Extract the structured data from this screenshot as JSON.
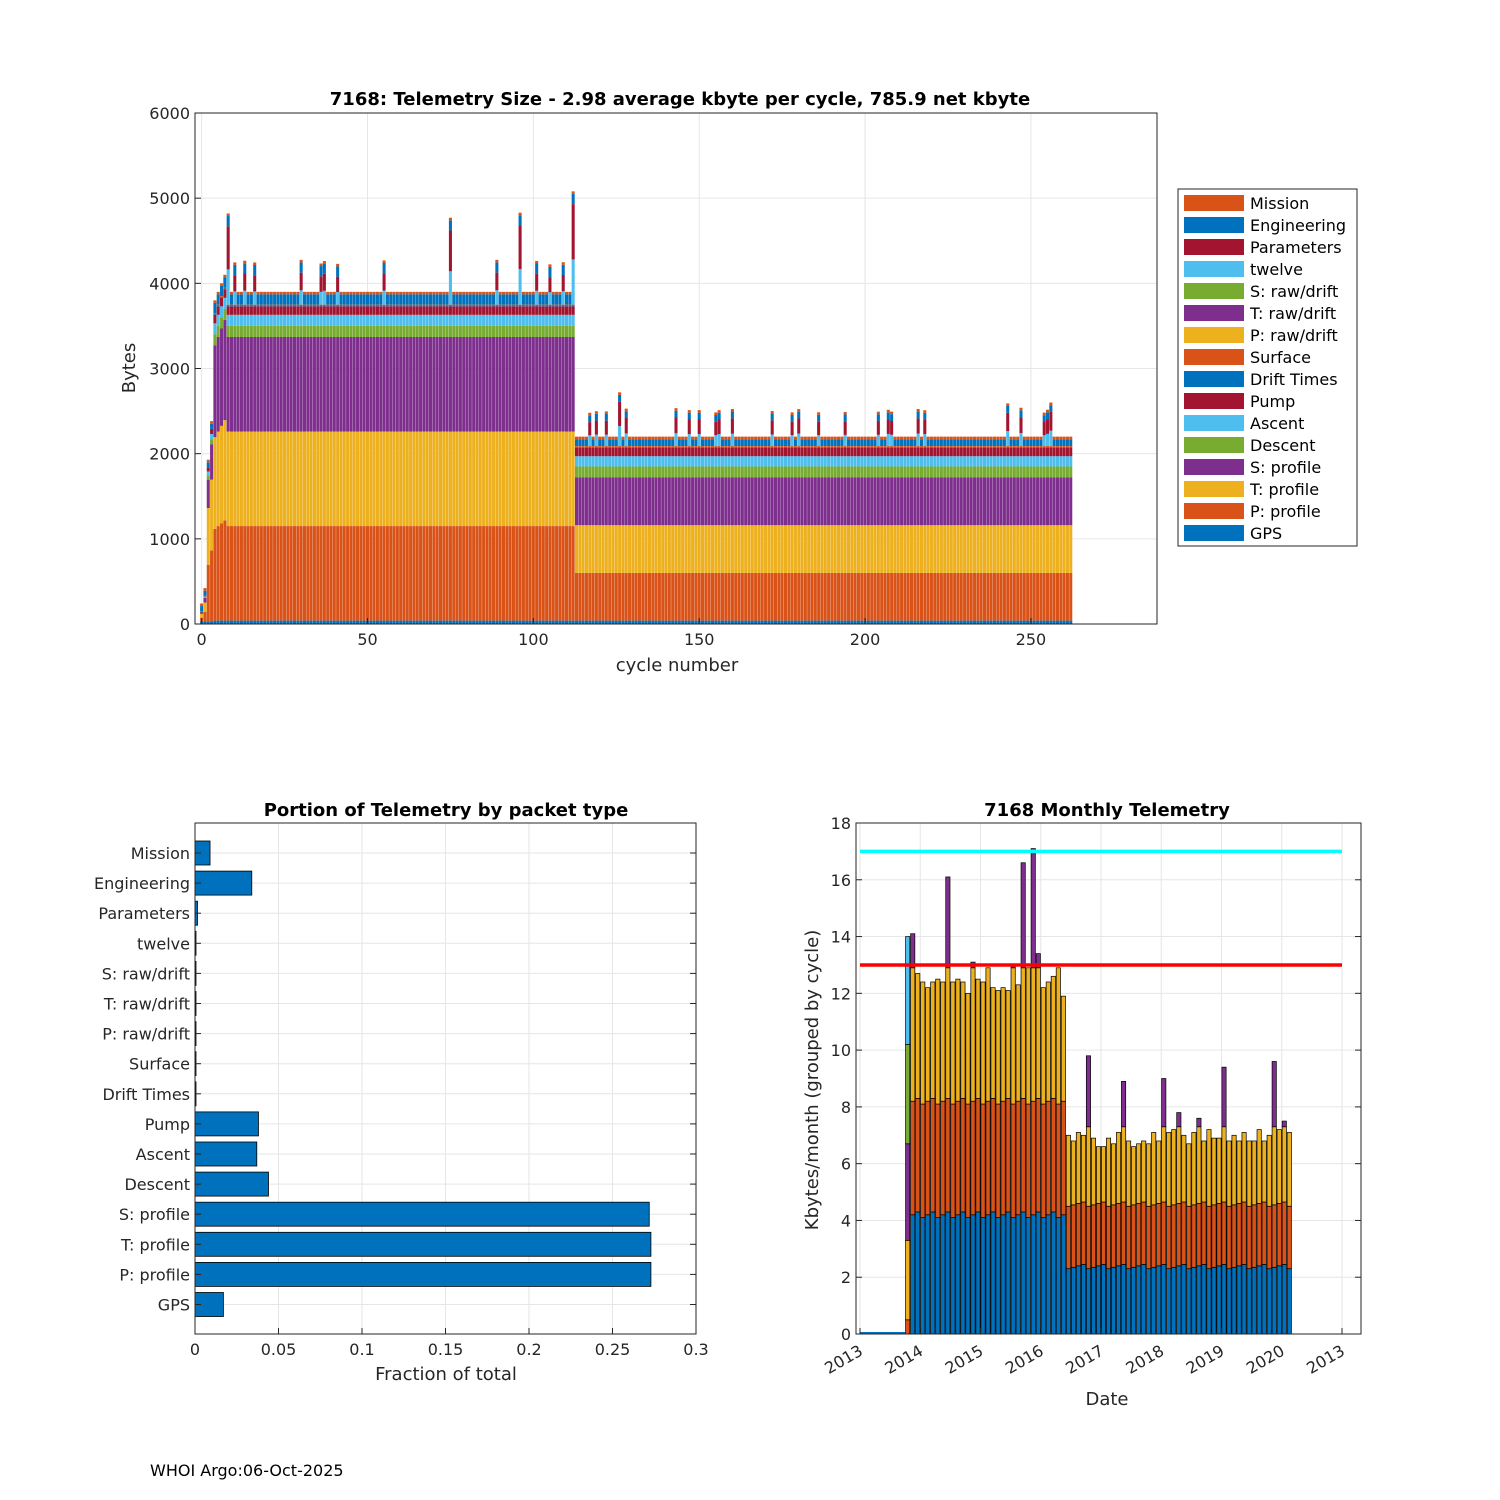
{
  "footer": "WHOI Argo:06-Oct-2025",
  "chart_data": [
    {
      "type": "bar",
      "stacked": true,
      "title": "7168: Telemetry Size - 2.98 average kbyte per cycle,  785.9 net kbyte",
      "xlabel": "cycle number",
      "ylabel": "Bytes",
      "xlim": [
        -2,
        288
      ],
      "ylim": [
        0,
        6000
      ],
      "xticks": [
        0,
        50,
        100,
        150,
        200,
        250
      ],
      "yticks": [
        0,
        1000,
        2000,
        3000,
        4000,
        5000,
        6000
      ],
      "grid": true,
      "legend_position": "right",
      "legend": [
        "Mission",
        "Engineering",
        "Parameters",
        "twelve",
        "S: raw/drift",
        "T: raw/drift",
        "P: raw/drift",
        "Surface",
        "Drift Times",
        "Pump",
        "Ascent",
        "Descent",
        "S: profile",
        "T: profile",
        "P: profile",
        "GPS"
      ],
      "colors": [
        "#D95319",
        "#0072BD",
        "#A2142F",
        "#4DBEEE",
        "#77AC30",
        "#7E2F8E",
        "#EDB120",
        "#D95319",
        "#0072BD",
        "#A2142F",
        "#4DBEEE",
        "#77AC30",
        "#7E2F8E",
        "#EDB120",
        "#D95319",
        "#0072BD"
      ],
      "cycles": "0-262",
      "typical_stack_cycles_8_112": {
        "GPS": 40,
        "P: profile": 1110,
        "T: profile": 1110,
        "S: profile": 1110,
        "Descent": 130,
        "Ascent": 130,
        "Pump": 100,
        "Drift Times": 10,
        "Surface": 10,
        "Engineering": 120,
        "Mission": 30
      },
      "typical_stack_cycles_113_262": {
        "GPS": 40,
        "P: profile": 560,
        "T: profile": 560,
        "S: profile": 560,
        "Descent": 130,
        "Ascent": 120,
        "Pump": 100,
        "Drift Times": 10,
        "Surface": 10,
        "Engineering": 80,
        "Mission": 30
      },
      "peaks": [
        {
          "cycle": 8,
          "total": 4820
        },
        {
          "cycle": 75,
          "total": 4770
        },
        {
          "cycle": 96,
          "total": 4830
        },
        {
          "cycle": 112,
          "total": 5080
        },
        {
          "cycle": 126,
          "total": 2720
        },
        {
          "cycle": 243,
          "total": 2590
        },
        {
          "cycle": 256,
          "total": 2600
        }
      ]
    },
    {
      "type": "bar",
      "orientation": "horizontal",
      "title": "Portion of Telemetry by packet type",
      "xlabel": "Fraction of total",
      "xlim": [
        0,
        0.3
      ],
      "xticks": [
        0,
        0.05,
        0.1,
        0.15,
        0.2,
        0.25,
        0.3
      ],
      "xticklabels": [
        "0",
        "0.05",
        "0.1",
        "0.15",
        "0.2",
        "0.25",
        "0.3"
      ],
      "categories": [
        "Mission",
        "Engineering",
        "Parameters",
        "twelve",
        "S: raw/drift",
        "T: raw/drift",
        "P: raw/drift",
        "Surface",
        "Drift Times",
        "Pump",
        "Ascent",
        "Descent",
        "S: profile",
        "T: profile",
        "P: profile",
        "GPS"
      ],
      "values": [
        0.009,
        0.034,
        0.0015,
        0.0005,
        0.0005,
        0.0005,
        0.0005,
        0.0005,
        0.0005,
        0.038,
        0.037,
        0.044,
        0.272,
        0.273,
        0.273,
        0.017
      ],
      "grid": true,
      "color": "#0072BD"
    },
    {
      "type": "bar",
      "stacked": true,
      "title": "7168 Monthly Telemetry",
      "xlabel": "Date",
      "ylabel": "Kbytes/month (grouped by cycle)",
      "ylim": [
        0,
        18
      ],
      "yticks": [
        0,
        2,
        4,
        6,
        8,
        10,
        12,
        14,
        16,
        18
      ],
      "xticklabels": [
        "2013",
        "2014",
        "2015",
        "2016",
        "2017",
        "2018",
        "2019",
        "2020",
        "2013"
      ],
      "xlim_months": [
        0,
        96
      ],
      "grid": true,
      "reference_lines": [
        {
          "y": 17,
          "color": "#00FFFF"
        },
        {
          "y": 13,
          "color": "#FF0000"
        }
      ],
      "series_colors": [
        "#0072BD",
        "#D95319",
        "#EDB120",
        "#7E2F8E",
        "#77AC30",
        "#4DBEEE"
      ],
      "months_start_index": 9,
      "monthly_totals": [
        14.0,
        14.1,
        12.7,
        12.4,
        12.2,
        12.4,
        12.5,
        12.4,
        16.1,
        12.4,
        12.5,
        12.4,
        12.0,
        13.1,
        12.5,
        12.4,
        12.9,
        12.2,
        12.1,
        12.2,
        12.1,
        13.0,
        12.3,
        16.6,
        12.9,
        17.1,
        13.4,
        12.2,
        12.4,
        12.6,
        12.9,
        11.9,
        7.0,
        6.8,
        7.1,
        7.0,
        9.8,
        6.9,
        6.6,
        6.6,
        6.9,
        6.7,
        7.1,
        8.9,
        6.8,
        6.6,
        6.7,
        6.8,
        6.7,
        7.1,
        6.8,
        9.0,
        7.1,
        7.2,
        7.8,
        7.0,
        6.7,
        7.1,
        7.6,
        6.8,
        7.2,
        6.9,
        6.9,
        9.4,
        6.8,
        7.0,
        6.8,
        7.1,
        6.8,
        6.8,
        7.2,
        6.8,
        7.0,
        9.6,
        7.2,
        7.5,
        7.1
      ]
    }
  ]
}
